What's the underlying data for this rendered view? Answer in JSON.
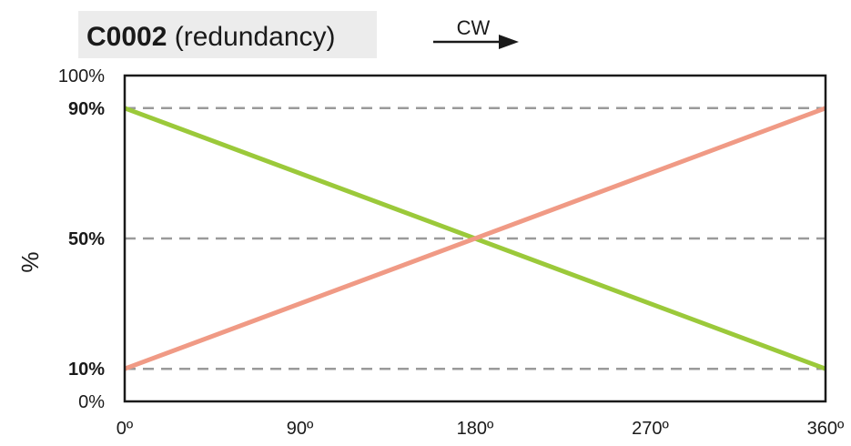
{
  "chart_data": {
    "type": "line",
    "title": {
      "code": "C0002",
      "rest": " (redundancy)"
    },
    "direction_label": "CW",
    "xlabel": "",
    "ylabel": "%",
    "xlim": [
      0,
      360
    ],
    "ylim": [
      0,
      100
    ],
    "x_ticks": [
      {
        "value": 0,
        "label": "0º"
      },
      {
        "value": 90,
        "label": "90º"
      },
      {
        "value": 180,
        "label": "180º"
      },
      {
        "value": 270,
        "label": "270º"
      },
      {
        "value": 360,
        "label": "360º"
      }
    ],
    "y_ticks": [
      {
        "value": 100,
        "label": "100%",
        "bold": false
      },
      {
        "value": 90,
        "label": "90%",
        "bold": true
      },
      {
        "value": 50,
        "label": "50%",
        "bold": true
      },
      {
        "value": 10,
        "label": "10%",
        "bold": true
      },
      {
        "value": 0,
        "label": "0%",
        "bold": false
      }
    ],
    "reference_lines": [
      90,
      50,
      10
    ],
    "grid": false,
    "legend": "none",
    "series": [
      {
        "color": "#9bc93a",
        "x": [
          0,
          360
        ],
        "y": [
          90,
          10
        ]
      },
      {
        "color": "#f09a85",
        "x": [
          0,
          360
        ],
        "y": [
          10,
          90
        ]
      }
    ],
    "colors": {
      "reference_line": "#9a9a9a",
      "axis": "#1a1a1a",
      "title_background": "#ececec"
    }
  }
}
